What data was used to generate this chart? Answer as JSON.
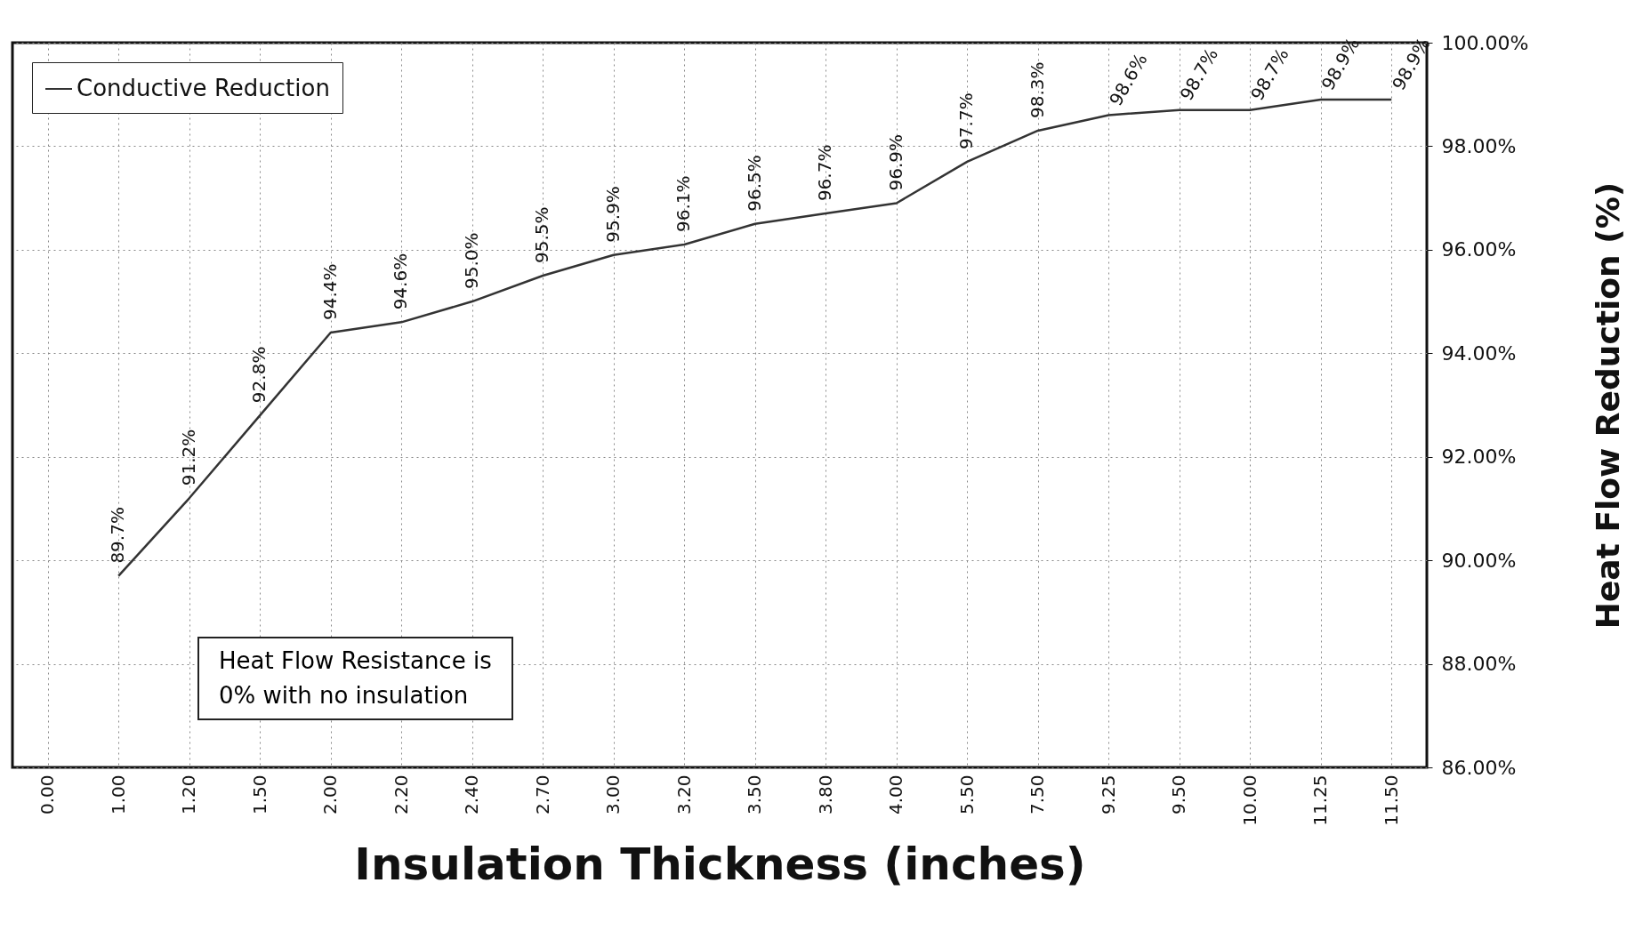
{
  "chart_data": {
    "type": "line",
    "xlabel": "Insulation Thickness (inches)",
    "ylabel": "Heat Flow Reduction (%)",
    "categories": [
      "0.00",
      "1.00",
      "1.20",
      "1.50",
      "2.00",
      "2.20",
      "2.40",
      "2.70",
      "3.00",
      "3.20",
      "3.50",
      "3.80",
      "4.00",
      "5.50",
      "7.50",
      "9.25",
      "9.50",
      "10.00",
      "11.25",
      "11.50"
    ],
    "series": [
      {
        "name": "Conductive Reduction",
        "color": "#333333",
        "values": [
          null,
          89.7,
          91.2,
          92.8,
          94.4,
          94.6,
          95.0,
          95.5,
          95.9,
          96.1,
          96.5,
          96.7,
          96.9,
          97.7,
          98.3,
          98.6,
          98.7,
          98.7,
          98.9,
          98.9
        ],
        "value_labels": [
          null,
          "89.7%",
          "91.2%",
          "92.8%",
          "94.4%",
          "94.6%",
          "95.0%",
          "95.5%",
          "95.9%",
          "96.1%",
          "96.5%",
          "96.7%",
          "96.9%",
          "97.7%",
          "98.3%",
          "98.6%",
          "98.7%",
          "98.7%",
          "98.9%",
          "98.9%"
        ]
      }
    ],
    "ylim": [
      86,
      100
    ],
    "yticks": [
      {
        "value": 86,
        "label": "86.00%"
      },
      {
        "value": 88,
        "label": "88.00%"
      },
      {
        "value": 90,
        "label": "90.00%"
      },
      {
        "value": 92,
        "label": "92.00%"
      },
      {
        "value": 94,
        "label": "94.00%"
      },
      {
        "value": 96,
        "label": "96.00%"
      },
      {
        "value": 98,
        "label": "98.00%"
      },
      {
        "value": 100,
        "label": "100.00%"
      }
    ],
    "grid": true,
    "legend": "top left",
    "marker": "none",
    "line_style": "solid",
    "annotations": [
      "Heat Flow Resistance is\n0% with no insulation"
    ]
  }
}
